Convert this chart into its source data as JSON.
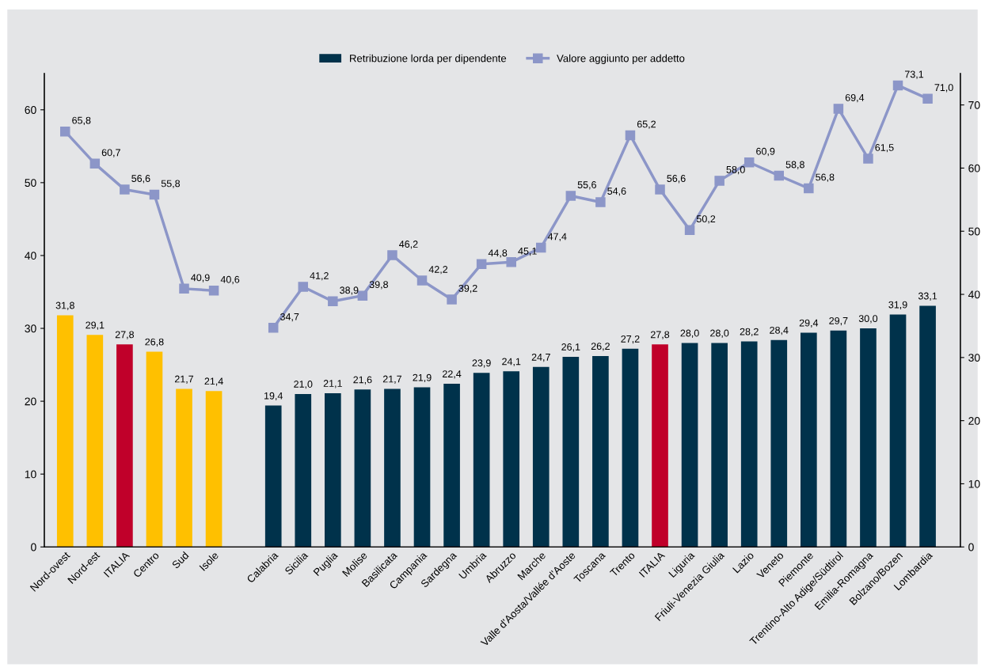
{
  "chart_data": {
    "type": "bar",
    "categories": [
      "Nord-ovest",
      "Nord-est",
      "ITALIA",
      "Centro",
      "Sud",
      "Isole",
      null,
      "Calabria",
      "Sicilia",
      "Puglia",
      "Molise",
      "Basilicata",
      "Campania",
      "Sardegna",
      "Umbria",
      "Abruzzo",
      "Marche",
      "Valle d'Aosta/Vallée d'Aoste",
      "Toscana",
      "Trento",
      "ITALIA",
      "Liguria",
      "Friuli-Venezia Giulia",
      "Lazio",
      "Veneto",
      "Piemonte",
      "Trentino-Alto Adige/Südtirol",
      "Emilia-Romagna",
      "Bolzano/Bozen",
      "Lombardia"
    ],
    "series": [
      {
        "name": "Retribuzione lorda per dipendente",
        "color": "#00324b",
        "colors": [
          "#ffc000",
          "#ffc000",
          "#c0002a",
          "#ffc000",
          "#ffc000",
          "#ffc000",
          null,
          "#00324b",
          "#00324b",
          "#00324b",
          "#00324b",
          "#00324b",
          "#00324b",
          "#00324b",
          "#00324b",
          "#00324b",
          "#00324b",
          "#00324b",
          "#00324b",
          "#00324b",
          "#c0002a",
          "#00324b",
          "#00324b",
          "#00324b",
          "#00324b",
          "#00324b",
          "#00324b",
          "#00324b",
          "#00324b",
          "#00324b"
        ],
        "values": [
          31.8,
          29.1,
          27.8,
          26.8,
          21.7,
          21.4,
          null,
          19.4,
          21.0,
          21.1,
          21.6,
          21.7,
          21.9,
          22.4,
          23.9,
          24.1,
          24.7,
          26.1,
          26.2,
          27.2,
          27.8,
          28.0,
          28.0,
          28.2,
          28.4,
          29.4,
          29.7,
          30.0,
          31.9,
          33.1
        ],
        "value_labels": [
          "31,8",
          "29,1",
          "27,8",
          "26,8",
          "21,7",
          "21,4",
          null,
          "19,4",
          "21,0",
          "21,1",
          "21,6",
          "21,7",
          "21,9",
          "22,4",
          "23,9",
          "24,1",
          "24,7",
          "26,1",
          "26,2",
          "27,2",
          "27,8",
          "28,0",
          "28,0",
          "28,2",
          "28,4",
          "29,4",
          "29,7",
          "30,0",
          "31,9",
          "33,1"
        ]
      },
      {
        "name": "Valore aggiunto per addetto",
        "type": "line",
        "axis": "y2",
        "color": "#8c96c8",
        "marker": "square",
        "values": [
          65.8,
          60.7,
          56.6,
          55.8,
          40.9,
          40.6,
          null,
          34.7,
          41.2,
          38.9,
          39.8,
          46.2,
          42.2,
          39.2,
          44.8,
          45.1,
          47.4,
          55.6,
          54.6,
          65.2,
          56.6,
          50.2,
          58.0,
          60.9,
          58.8,
          56.8,
          69.4,
          61.5,
          73.1,
          71.0
        ],
        "value_labels": [
          "65,8",
          "60,7",
          "56,6",
          "55,8",
          "40,9",
          "40,6",
          null,
          "34,7",
          "41,2",
          "38,9",
          "39,8",
          "46,2",
          "42,2",
          "39,2",
          "44,8",
          "45,1",
          "47,4",
          "55,6",
          "54,6",
          "65,2",
          "56,6",
          "50,2",
          "58,0",
          "60,9",
          "58,8",
          "56,8",
          "69,4",
          "61,5",
          "73,1",
          "71,0"
        ]
      }
    ],
    "ylim": [
      0,
      65
    ],
    "yticks": [
      0,
      10,
      20,
      30,
      40,
      50,
      60
    ],
    "y2lim": [
      0,
      75
    ],
    "y2ticks": [
      0,
      10,
      20,
      30,
      40,
      50,
      60,
      70
    ],
    "legend": "top",
    "grid": false
  }
}
